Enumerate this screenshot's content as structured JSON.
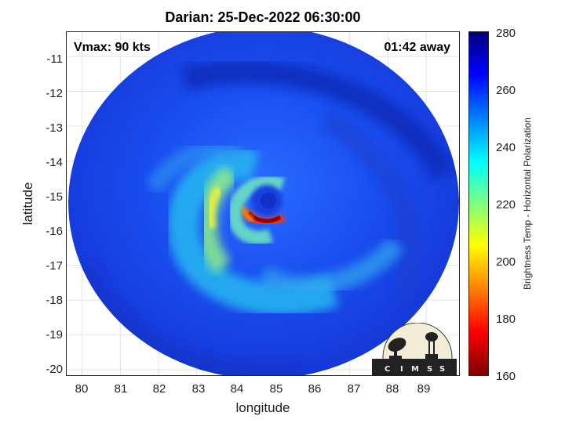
{
  "title": "Darian: 25-Dec-2022 06:30:00",
  "annotations": {
    "vmax": "Vmax: 90 kts",
    "time_away": "01:42 away"
  },
  "axes": {
    "xlabel": "longitude",
    "ylabel": "latitude",
    "x_ticks": [
      "80",
      "81",
      "82",
      "83",
      "84",
      "85",
      "86",
      "87",
      "88",
      "89"
    ],
    "y_ticks": [
      "-11",
      "-12",
      "-13",
      "-14",
      "-15",
      "-16",
      "-17",
      "-18",
      "-19",
      "-20"
    ],
    "xlim": [
      79.6,
      89.9
    ],
    "ylim": [
      -20.2,
      -10.3
    ]
  },
  "colorbar": {
    "label": "Brightness Temp - Horizontal Polarization",
    "ticks": [
      "280",
      "260",
      "240",
      "220",
      "200",
      "180",
      "160"
    ],
    "range": [
      160,
      280
    ],
    "colormap": "jet"
  },
  "storm": {
    "name": "Darian",
    "center_lon": 84.8,
    "center_lat": -15.3
  },
  "logo": {
    "text": "CIMSS",
    "letters": [
      "C",
      "I",
      "M",
      "S",
      "S"
    ]
  }
}
